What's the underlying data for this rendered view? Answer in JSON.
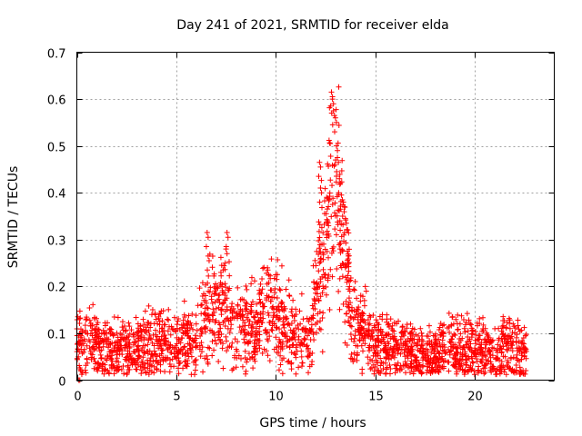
{
  "chart_data": {
    "type": "scatter",
    "title": "Day 241 of 2021, SRMTID for receiver elda",
    "xlabel": "GPS time / hours",
    "ylabel": "SRMTID / TECUs",
    "xlim": [
      0,
      24
    ],
    "ylim": [
      0,
      0.7
    ],
    "xticks": [
      0,
      5,
      10,
      15,
      20
    ],
    "yticks": [
      0,
      0.1,
      0.2,
      0.3,
      0.4,
      0.5,
      0.6,
      0.7
    ],
    "xtick_labels": [
      "0",
      "5",
      "10",
      "15",
      "20"
    ],
    "ytick_labels": [
      "0",
      "0.1",
      "0.2",
      "0.3",
      "0.4",
      "0.5",
      "0.6",
      "0.7"
    ],
    "grid": true,
    "marker": "+",
    "marker_color": "#ff0000",
    "series": [
      {
        "name": "SRMTID",
        "x_range": [
          0,
          22.6
        ],
        "baseline_envelope": [
          [
            0.0,
            0.075
          ],
          [
            1.0,
            0.075
          ],
          [
            2.0,
            0.06
          ],
          [
            3.0,
            0.065
          ],
          [
            4.0,
            0.085
          ],
          [
            5.0,
            0.075
          ],
          [
            6.0,
            0.095
          ],
          [
            6.5,
            0.14
          ],
          [
            7.0,
            0.15
          ],
          [
            7.5,
            0.15
          ],
          [
            8.0,
            0.11
          ],
          [
            9.0,
            0.115
          ],
          [
            9.5,
            0.16
          ],
          [
            10.0,
            0.14
          ],
          [
            10.5,
            0.12
          ],
          [
            11.0,
            0.09
          ],
          [
            11.8,
            0.1
          ],
          [
            12.3,
            0.25
          ],
          [
            12.8,
            0.4
          ],
          [
            13.3,
            0.33
          ],
          [
            13.8,
            0.13
          ],
          [
            14.5,
            0.09
          ],
          [
            15.0,
            0.065
          ],
          [
            16.0,
            0.07
          ],
          [
            17.0,
            0.06
          ],
          [
            18.0,
            0.05
          ],
          [
            19.0,
            0.075
          ],
          [
            20.0,
            0.065
          ],
          [
            21.0,
            0.055
          ],
          [
            22.0,
            0.065
          ],
          [
            22.6,
            0.045
          ]
        ],
        "spread": 0.03,
        "peaks": [
          {
            "x": 6.55,
            "y": 0.315
          },
          {
            "x": 6.6,
            "y": 0.265
          },
          {
            "x": 7.55,
            "y": 0.315
          },
          {
            "x": 7.5,
            "y": 0.28
          },
          {
            "x": 9.6,
            "y": 0.235
          },
          {
            "x": 10.0,
            "y": 0.225
          },
          {
            "x": 12.2,
            "y": 0.465
          },
          {
            "x": 12.25,
            "y": 0.41
          },
          {
            "x": 12.8,
            "y": 0.615
          },
          {
            "x": 12.85,
            "y": 0.6
          },
          {
            "x": 12.9,
            "y": 0.575
          },
          {
            "x": 13.0,
            "y": 0.56
          },
          {
            "x": 13.05,
            "y": 0.5
          },
          {
            "x": 13.1,
            "y": 0.475
          },
          {
            "x": 13.2,
            "y": 0.43
          },
          {
            "x": 13.3,
            "y": 0.395
          },
          {
            "x": 13.4,
            "y": 0.38
          },
          {
            "x": 13.5,
            "y": 0.345
          },
          {
            "x": 13.6,
            "y": 0.275
          },
          {
            "x": 14.5,
            "y": 0.2
          },
          {
            "x": 12.6,
            "y": 0.34
          }
        ],
        "low_points": [
          {
            "x": 0.1,
            "y": 0.0
          },
          {
            "x": 0.15,
            "y": 0.0
          }
        ]
      }
    ]
  }
}
